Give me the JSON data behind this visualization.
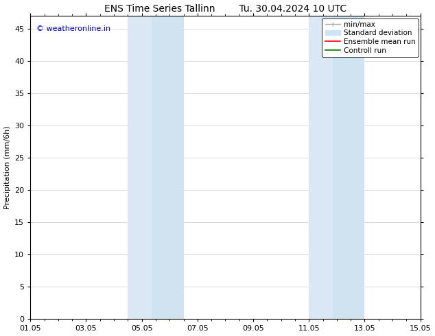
{
  "title_left": "ENS Time Series Tallinn",
  "title_right": "Tu. 30.04.2024 10 UTC",
  "ylabel": "Precipitation (mm/6h)",
  "xlabel": "",
  "ylim": [
    0,
    47
  ],
  "yticks": [
    0,
    5,
    10,
    15,
    20,
    25,
    30,
    35,
    40,
    45
  ],
  "xtick_labels": [
    "01.05",
    "03.05",
    "05.05",
    "07.05",
    "09.05",
    "11.05",
    "13.05",
    "15.05"
  ],
  "xtick_positions": [
    0,
    2,
    4,
    6,
    8,
    10,
    12,
    14
  ],
  "xlim": [
    0,
    14
  ],
  "bg_color": "#ffffff",
  "plot_bg_color": "#ffffff",
  "shaded_regions": [
    {
      "x_start": 3.5,
      "x_end": 4.35,
      "color": "#dae8f5"
    },
    {
      "x_start": 4.35,
      "x_end": 5.5,
      "color": "#cfe3f0"
    },
    {
      "x_start": 10.0,
      "x_end": 10.85,
      "color": "#dae8f5"
    },
    {
      "x_start": 10.85,
      "x_end": 12.0,
      "color": "#cfe3f0"
    }
  ],
  "legend_labels": [
    "min/max",
    "Standard deviation",
    "Ensemble mean run",
    "Controll run"
  ],
  "legend_colors_line": [
    "#aaaaaa",
    "#bbcfdf",
    "#ff0000",
    "#007700"
  ],
  "watermark_text": "© weatheronline.in",
  "watermark_color": "#0000cc",
  "watermark_fontsize": 8,
  "title_fontsize": 10,
  "axis_label_fontsize": 8,
  "tick_fontsize": 8,
  "legend_fontsize": 7.5
}
